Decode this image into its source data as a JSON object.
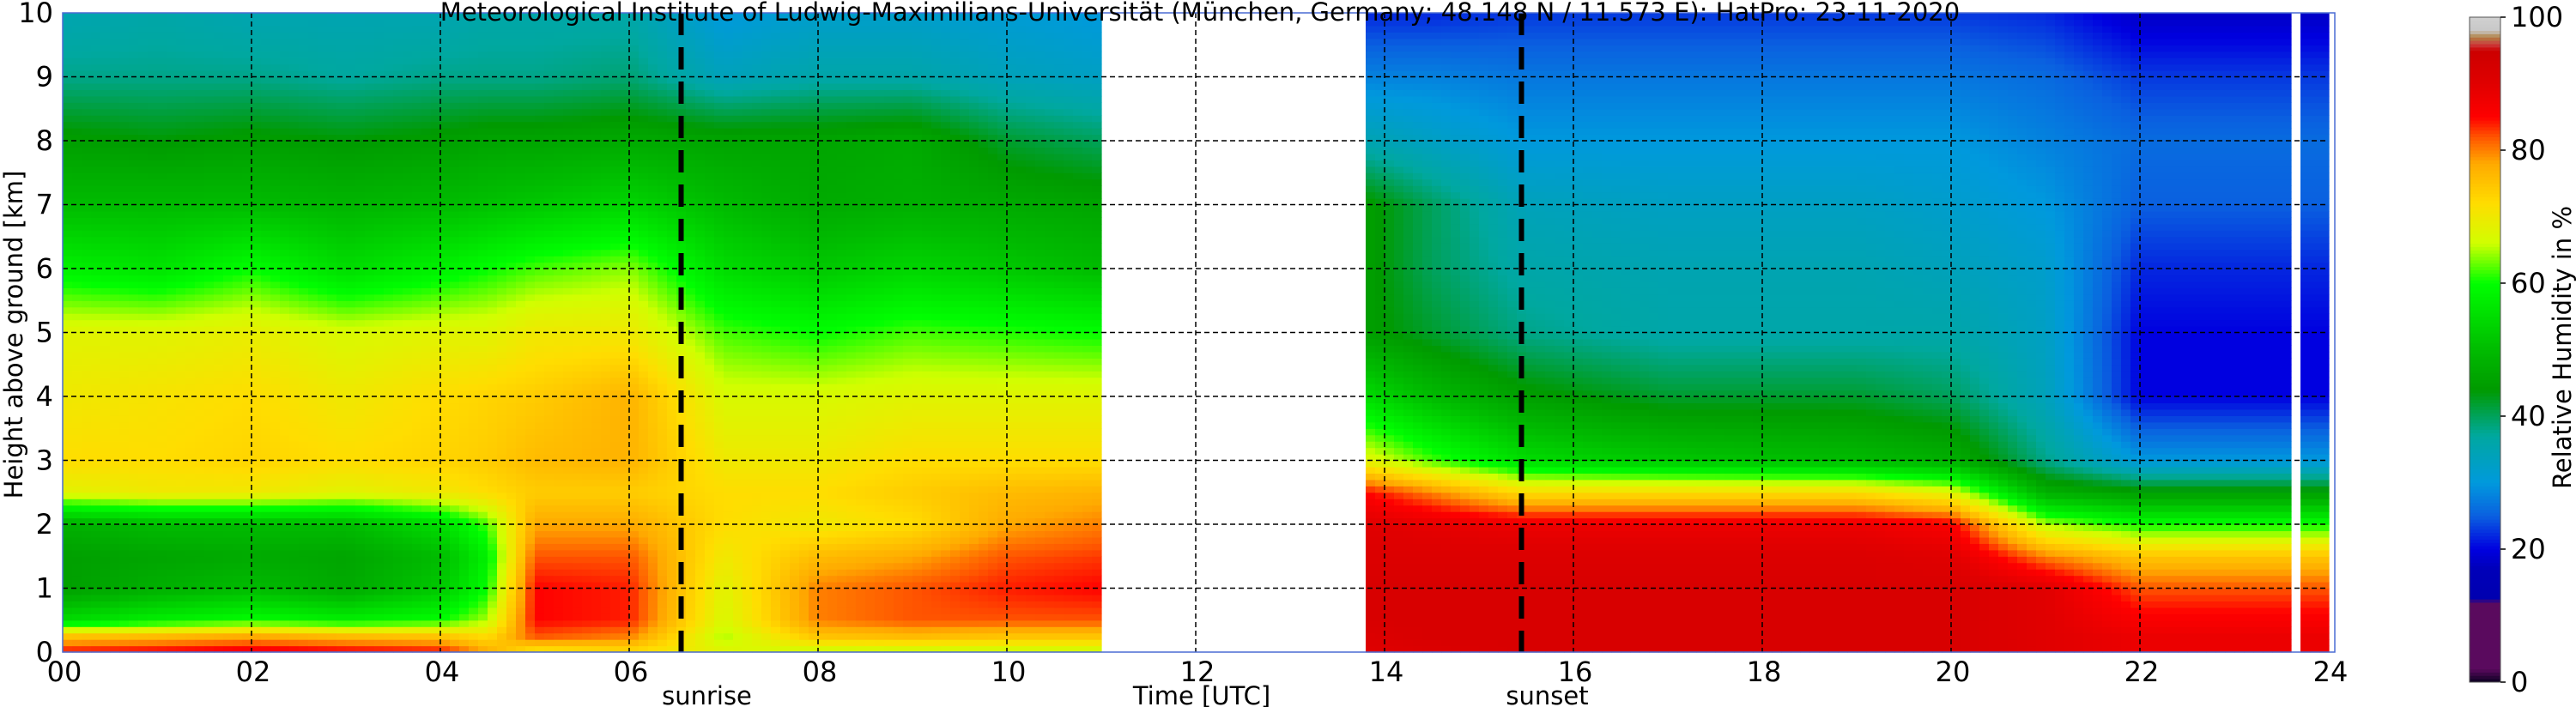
{
  "chart_data": {
    "type": "heatmap",
    "title": "Meteorological Institute of Ludwig-Maximilians-Universität (München, Germany; 48.148 N / 11.573 E):    HatPro: 23-11-2020",
    "xlabel": "Time [UTC]",
    "ylabel": "Height above ground [km]",
    "colorbar_label": "Relative Humidity in %",
    "xlim": [
      0,
      24
    ],
    "ylim": [
      0,
      10
    ],
    "clim": [
      0,
      100
    ],
    "x_ticks": [
      "00",
      "02",
      "04",
      "06",
      "08",
      "10",
      "12",
      "14",
      "16",
      "18",
      "20",
      "22",
      "24"
    ],
    "y_ticks": [
      "0",
      "1",
      "2",
      "3",
      "4",
      "5",
      "6",
      "7",
      "8",
      "9",
      "10"
    ],
    "colorbar_ticks": [
      "0",
      "20",
      "40",
      "60",
      "80",
      "100"
    ],
    "grid": true,
    "annotations": [
      {
        "label": "sunrise",
        "time": 6.55
      },
      {
        "label": "sunset",
        "time": 15.45
      }
    ],
    "heights_km": [
      0,
      0.25,
      0.5,
      1,
      1.5,
      2,
      2.5,
      3,
      4,
      5,
      6,
      7,
      8,
      9,
      10
    ],
    "profiles": [
      {
        "time": 0.0,
        "rh": [
          85,
          75,
          55,
          45,
          45,
          48,
          68,
          72,
          70,
          68,
          58,
          50,
          45,
          38,
          35
        ]
      },
      {
        "time": 1.0,
        "rh": [
          86,
          76,
          58,
          48,
          46,
          50,
          70,
          72,
          71,
          68,
          56,
          50,
          44,
          38,
          36
        ]
      },
      {
        "time": 2.0,
        "rh": [
          87,
          78,
          60,
          50,
          47,
          50,
          70,
          73,
          72,
          69,
          60,
          50,
          45,
          38,
          35
        ]
      },
      {
        "time": 3.0,
        "rh": [
          86,
          76,
          58,
          47,
          46,
          50,
          68,
          72,
          70,
          67,
          55,
          49,
          44,
          37,
          35
        ]
      },
      {
        "time": 4.0,
        "rh": [
          85,
          75,
          60,
          52,
          50,
          55,
          70,
          73,
          72,
          68,
          58,
          50,
          45,
          38,
          35
        ]
      },
      {
        "time": 4.5,
        "rh": [
          78,
          72,
          65,
          60,
          58,
          62,
          72,
          74,
          73,
          68,
          60,
          51,
          46,
          38,
          36
        ]
      },
      {
        "time": 5.0,
        "rh": [
          70,
          82,
          85,
          85,
          82,
          78,
          74,
          76,
          74,
          70,
          62,
          52,
          46,
          38,
          36
        ]
      },
      {
        "time": 6.0,
        "rh": [
          72,
          80,
          84,
          84,
          82,
          78,
          74,
          77,
          77,
          70,
          64,
          54,
          47,
          39,
          36
        ]
      },
      {
        "time": 7.0,
        "rh": [
          68,
          65,
          67,
          68,
          70,
          72,
          72,
          70,
          67,
          62,
          55,
          50,
          46,
          34,
          30
        ]
      },
      {
        "time": 8.0,
        "rh": [
          65,
          75,
          80,
          80,
          76,
          70,
          72,
          70,
          67,
          60,
          52,
          47,
          46,
          36,
          32
        ]
      },
      {
        "time": 9.0,
        "rh": [
          65,
          76,
          82,
          82,
          78,
          72,
          74,
          72,
          68,
          62,
          54,
          48,
          47,
          36,
          32
        ]
      },
      {
        "time": 10.0,
        "rh": [
          65,
          75,
          82,
          84,
          82,
          78,
          76,
          72,
          68,
          61,
          52,
          47,
          42,
          34,
          31
        ]
      },
      {
        "time": 11.0,
        "rh": [
          65,
          75,
          82,
          85,
          83,
          80,
          77,
          72,
          68,
          60,
          50,
          46,
          40,
          33,
          30
        ]
      },
      {
        "time": 13.8,
        "rh": [
          90,
          91,
          92,
          92,
          91,
          90,
          85,
          68,
          55,
          45,
          45,
          45,
          35,
          28,
          22
        ]
      },
      {
        "time": 14.5,
        "rh": [
          91,
          92,
          92,
          92,
          91,
          89,
          80,
          62,
          50,
          42,
          40,
          40,
          33,
          28,
          22
        ]
      },
      {
        "time": 15.5,
        "rh": [
          92,
          92,
          92,
          92,
          91,
          88,
          72,
          55,
          45,
          38,
          36,
          34,
          30,
          27,
          23
        ]
      },
      {
        "time": 17.0,
        "rh": [
          92,
          92,
          92,
          92,
          91,
          88,
          72,
          52,
          42,
          36,
          35,
          33,
          30,
          27,
          23
        ]
      },
      {
        "time": 19.0,
        "rh": [
          92,
          92,
          92,
          92,
          91,
          88,
          72,
          50,
          42,
          36,
          35,
          33,
          30,
          27,
          23
        ]
      },
      {
        "time": 20.0,
        "rh": [
          92,
          92,
          92,
          92,
          90,
          86,
          68,
          48,
          40,
          36,
          34,
          32,
          30,
          27,
          23
        ]
      },
      {
        "time": 21.0,
        "rh": [
          90,
          90,
          90,
          90,
          80,
          65,
          48,
          38,
          34,
          33,
          32,
          30,
          28,
          26,
          22
        ]
      },
      {
        "time": 22.0,
        "rh": [
          88,
          88,
          86,
          82,
          75,
          60,
          45,
          30,
          20,
          20,
          22,
          25,
          26,
          23,
          18
        ]
      },
      {
        "time": 24.0,
        "rh": [
          88,
          88,
          86,
          82,
          75,
          60,
          45,
          30,
          20,
          20,
          22,
          25,
          26,
          23,
          18
        ]
      }
    ],
    "no_data_intervals": [
      [
        11.0,
        13.8
      ],
      [
        23.62,
        23.68
      ]
    ],
    "colormap": [
      {
        "v": 0,
        "c": "#0a0020"
      },
      {
        "v": 2,
        "c": "#5a0a5e"
      },
      {
        "v": 12,
        "c": "#5a0a5e"
      },
      {
        "v": 12.5,
        "c": "#0000b0"
      },
      {
        "v": 17,
        "c": "#0000b8"
      },
      {
        "v": 20,
        "c": "#0000e0"
      },
      {
        "v": 25,
        "c": "#0a60e0"
      },
      {
        "v": 30,
        "c": "#0099dd"
      },
      {
        "v": 37,
        "c": "#00a8a0"
      },
      {
        "v": 44,
        "c": "#009a00"
      },
      {
        "v": 50,
        "c": "#00bb00"
      },
      {
        "v": 60,
        "c": "#00ff00"
      },
      {
        "v": 66,
        "c": "#d0ff00"
      },
      {
        "v": 72,
        "c": "#ffdd00"
      },
      {
        "v": 78,
        "c": "#ffaa00"
      },
      {
        "v": 82,
        "c": "#ff5500"
      },
      {
        "v": 85,
        "c": "#ff0000"
      },
      {
        "v": 90,
        "c": "#e00000"
      },
      {
        "v": 95,
        "c": "#cc0000"
      },
      {
        "v": 96,
        "c": "#cc4040"
      },
      {
        "v": 97,
        "c": "#b08040"
      },
      {
        "v": 98,
        "c": "#c8c8c8"
      },
      {
        "v": 100,
        "c": "#d0d0d0"
      }
    ]
  }
}
